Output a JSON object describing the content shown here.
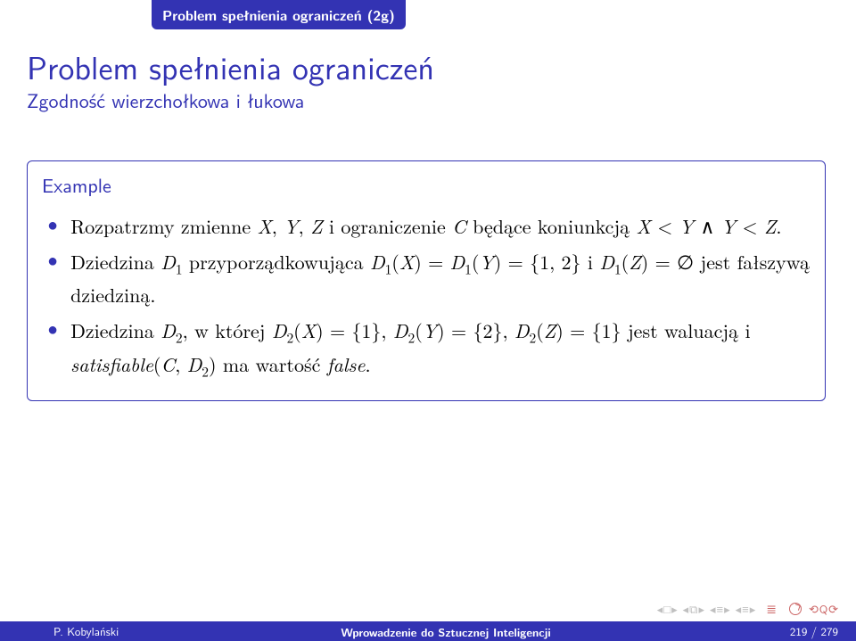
{
  "header": {
    "tab": "Problem spełnienia ograniczeń (2g)"
  },
  "title": "Problem spełnienia ograniczeń",
  "subtitle": "Zgodność wierzchołkowa i łukowa",
  "example": {
    "heading": "Example",
    "items": [
      "Rozpatrzmy zmienne <span class=\"math-i\">X</span>, <span class=\"math-i\">Y</span>, <span class=\"math-i\">Z</span> i ograniczenie <span class=\"math-i\">C</span> będące koniunkcją <span class=\"math-i\">X</span> &lt; <span class=\"math-i\">Y</span> ∧ <span class=\"math-i\">Y</span> &lt; <span class=\"math-i\">Z</span>.",
      "Dziedzina <span class=\"math-i\">D</span><span class=\"sub\">1</span> przyporządkowująca <span class=\"math-i\">D</span><span class=\"sub\">1</span>(<span class=\"math-i\">X</span>) = <span class=\"math-i\">D</span><span class=\"sub\">1</span>(<span class=\"math-i\">Y</span>) = {1, 2} i <span class=\"math-i\">D</span><span class=\"sub\">1</span>(<span class=\"math-i\">Z</span>) = ∅ jest fałszywą dziedziną.",
      "Dziedzina <span class=\"math-i\">D</span><span class=\"sub\">2</span>, w której <span class=\"math-i\">D</span><span class=\"sub\">2</span>(<span class=\"math-i\">X</span>) = {1}, <span class=\"math-i\">D</span><span class=\"sub\">2</span>(<span class=\"math-i\">Y</span>) = {2}, <span class=\"math-i\">D</span><span class=\"sub\">2</span>(<span class=\"math-i\">Z</span>) = {1} jest waluacją i <span class=\"math-i\">satisfiable</span>(<span class=\"math-i\">C</span>, <span class=\"math-i\">D</span><span class=\"sub\">2</span>) ma wartość <span class=\"math-i\">false</span>."
    ]
  },
  "footer": {
    "author": "P. Kobylański",
    "course": "Wprowadzenie do Sztucznej Inteligencji",
    "page": "219 / 279"
  },
  "colors": {
    "theme": "#3333b3",
    "nav_muted": "#c0c0c0",
    "nav_accent": "#cc6666",
    "background": "#ffffff",
    "text": "#000000"
  }
}
